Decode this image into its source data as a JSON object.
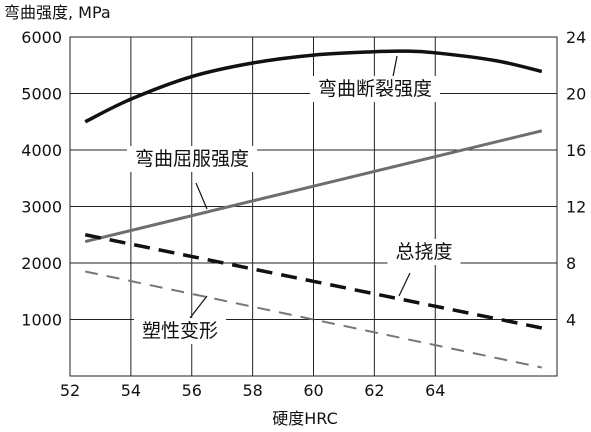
{
  "chart_data": {
    "type": "line",
    "y_title": "弯曲强度, MPa",
    "x_title": "硬度HRC",
    "xlim": [
      52,
      68
    ],
    "ylim": [
      0,
      6000
    ],
    "y2lim": [
      0,
      24
    ],
    "x_ticks": [
      52,
      54,
      56,
      58,
      60,
      62,
      64
    ],
    "y_ticks": [
      1000,
      2000,
      3000,
      4000,
      5000,
      6000
    ],
    "y2_ticks": [
      4,
      8,
      12,
      16,
      20,
      24
    ],
    "grid": true,
    "series": [
      {
        "name": "弯曲断裂强度",
        "axis": "left",
        "style": "solid",
        "color": "#111111",
        "x": [
          52.5,
          54,
          56,
          58,
          60,
          62,
          63,
          64,
          66,
          67.5
        ],
        "y": [
          4500,
          4900,
          5300,
          5540,
          5680,
          5740,
          5750,
          5720,
          5580,
          5390
        ]
      },
      {
        "name": "弯曲屈服强度",
        "axis": "left",
        "style": "solid",
        "color": "#6e6e6e",
        "x": [
          52.5,
          67.5
        ],
        "y": [
          2380,
          4340
        ]
      },
      {
        "name": "总挠度",
        "axis": "right",
        "style": "dashed",
        "color": "#111111",
        "x": [
          52.5,
          67.5
        ],
        "y": [
          10.0,
          3.4
        ]
      },
      {
        "name": "塑性变形",
        "axis": "right",
        "style": "dashed",
        "color": "#777777",
        "x": [
          52.5,
          67.5
        ],
        "y": [
          7.4,
          0.6
        ]
      }
    ]
  }
}
